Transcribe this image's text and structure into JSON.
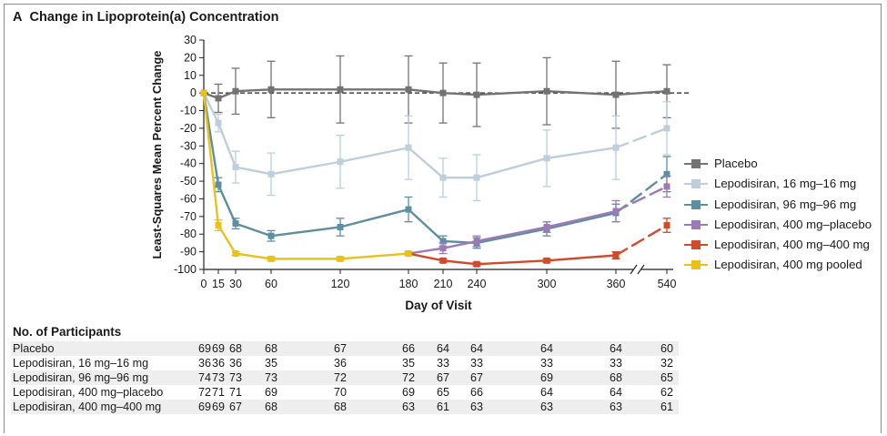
{
  "panel": {
    "letter": "A",
    "title": "Change in Lipoprotein(a) Concentration"
  },
  "chart_data": {
    "type": "line",
    "title": "Change in Lipoprotein(a) Concentration",
    "xlabel": "Day of Visit",
    "ylabel": "Least-Squares Mean Percent Change",
    "ylim": [
      -100,
      30
    ],
    "yticks": [
      30,
      20,
      10,
      0,
      -10,
      -20,
      -30,
      -40,
      -50,
      -60,
      -70,
      -80,
      -90,
      -100
    ],
    "xtick_labels": [
      "0",
      "15",
      "30",
      "60",
      "120",
      "180",
      "210",
      "240",
      "300",
      "360",
      "540"
    ],
    "axis_break_between": [
      "360",
      "540"
    ],
    "reference_line_y": 0,
    "legend_position": "right",
    "grid": false,
    "series": [
      {
        "name": "Placebo",
        "color": "#737373",
        "dash_last_segment": false,
        "x": [
          "0",
          "15",
          "30",
          "60",
          "120",
          "180",
          "210",
          "240",
          "300",
          "360",
          "540"
        ],
        "y": [
          0,
          -3,
          1,
          2,
          2,
          2,
          0,
          -1,
          1,
          -1,
          1
        ],
        "err": [
          0,
          8,
          13,
          16,
          19,
          19,
          17,
          18,
          19,
          19,
          15
        ]
      },
      {
        "name": "Lepodisiran, 16 mg–16 mg",
        "color": "#bccfda",
        "dash_last_segment": true,
        "x": [
          "0",
          "15",
          "30",
          "60",
          "120",
          "180",
          "210",
          "240",
          "300",
          "360",
          "540"
        ],
        "y": [
          0,
          -17,
          -42,
          -46,
          -39,
          -31,
          -48,
          -48,
          -37,
          -31,
          -20
        ],
        "err": [
          0,
          5,
          9,
          12,
          15,
          18,
          11,
          13,
          16,
          18,
          15
        ]
      },
      {
        "name": "Lepodisiran, 96 mg–96 mg",
        "color": "#5e8fa1",
        "dash_last_segment": true,
        "x": [
          "0",
          "15",
          "30",
          "60",
          "120",
          "180",
          "210",
          "240",
          "300",
          "360",
          "540"
        ],
        "y": [
          0,
          -52,
          -74,
          -81,
          -76,
          -66,
          -84,
          -85,
          -77,
          -68,
          -46
        ],
        "err": [
          0,
          4,
          3,
          3,
          5,
          7,
          3,
          3,
          4,
          5,
          10
        ]
      },
      {
        "name": "Lepodisiran, 400 mg–placebo",
        "color": "#9c7bb5",
        "dash_last_segment": true,
        "x": [
          "180",
          "210",
          "240",
          "300",
          "360",
          "540"
        ],
        "y": [
          -91,
          -88,
          -84,
          -76,
          -67,
          -53
        ],
        "err": [
          1,
          3,
          3,
          3,
          6,
          6
        ]
      },
      {
        "name": "Lepodisiran, 400 mg–400 mg",
        "color": "#d04a2c",
        "dash_last_segment": true,
        "x": [
          "180",
          "210",
          "240",
          "300",
          "360",
          "540"
        ],
        "y": [
          -91,
          -95,
          -97,
          -95,
          -92,
          -75
        ],
        "err": [
          1,
          1,
          1,
          1,
          2,
          4
        ]
      },
      {
        "name": "Lepodisiran, 400 mg pooled",
        "color": "#e8c21b",
        "dash_last_segment": false,
        "x": [
          "0",
          "15",
          "30",
          "60",
          "120",
          "180"
        ],
        "y": [
          0,
          -75,
          -91,
          -94,
          -94,
          -91
        ],
        "err": [
          0,
          3,
          1,
          1,
          1,
          1
        ]
      }
    ]
  },
  "legend": [
    {
      "label": "Placebo",
      "color": "#737373"
    },
    {
      "label": "Lepodisiran, 16 mg–16 mg",
      "color": "#bccfda"
    },
    {
      "label": "Lepodisiran, 96 mg–96 mg",
      "color": "#5e8fa1"
    },
    {
      "label": "Lepodisiran, 400 mg–placebo",
      "color": "#9c7bb5"
    },
    {
      "label": "Lepodisiran, 400 mg–400 mg",
      "color": "#d04a2c"
    },
    {
      "label": "Lepodisiran, 400 mg pooled",
      "color": "#e8c21b"
    }
  ],
  "participants": {
    "title": "No. of Participants",
    "rows": [
      {
        "label": "Placebo",
        "values": [
          "69",
          "69",
          "68",
          "68",
          "67",
          "66",
          "64",
          "64",
          "64",
          "64",
          "60"
        ]
      },
      {
        "label": "Lepodisiran, 16 mg–16 mg",
        "values": [
          "36",
          "36",
          "36",
          "35",
          "36",
          "35",
          "33",
          "33",
          "33",
          "33",
          "32"
        ]
      },
      {
        "label": "Lepodisiran, 96 mg–96 mg",
        "values": [
          "74",
          "73",
          "73",
          "73",
          "72",
          "72",
          "67",
          "67",
          "69",
          "68",
          "65"
        ]
      },
      {
        "label": "Lepodisiran, 400 mg–placebo",
        "values": [
          "72",
          "71",
          "71",
          "69",
          "70",
          "69",
          "65",
          "66",
          "64",
          "64",
          "62"
        ]
      },
      {
        "label": "Lepodisiran, 400 mg–400 mg",
        "values": [
          "69",
          "69",
          "67",
          "68",
          "68",
          "63",
          "61",
          "63",
          "63",
          "63",
          "61"
        ]
      }
    ]
  }
}
